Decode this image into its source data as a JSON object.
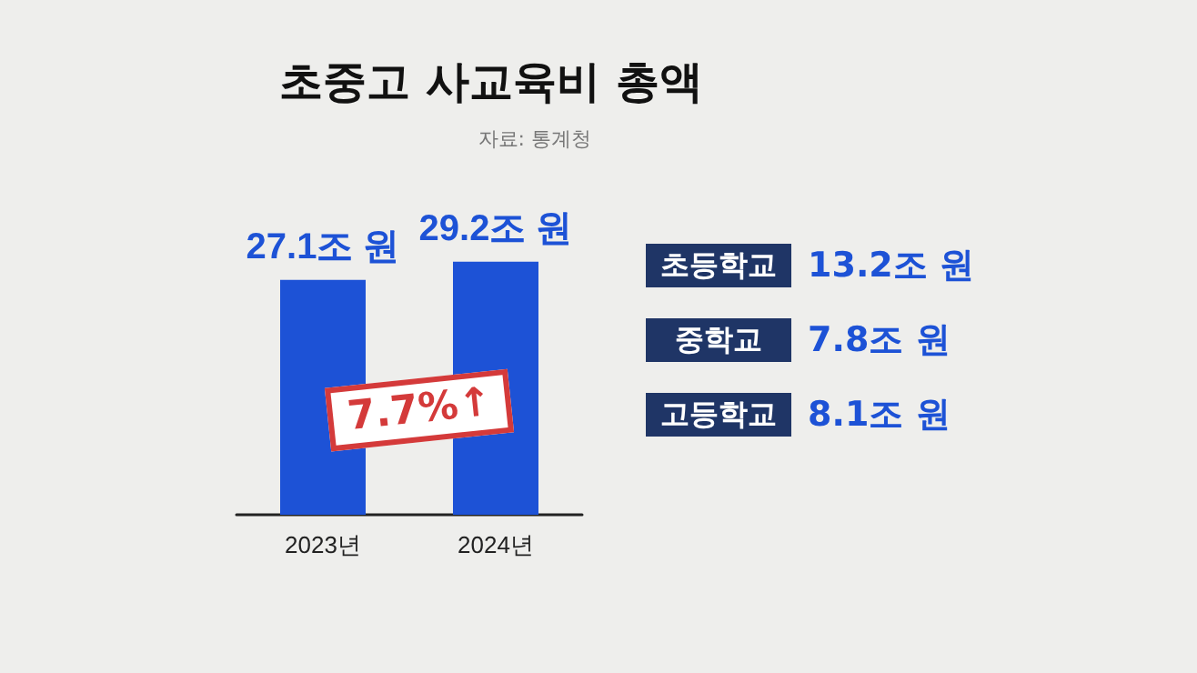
{
  "chart_data": [
    {
      "type": "bar",
      "title": "초중고 사교육비 총액",
      "subtitle": "자료: 통계청",
      "categories": [
        "2023년",
        "2024년"
      ],
      "values": [
        27.1,
        29.2
      ],
      "value_labels": [
        "27.1조 원",
        "29.2조 원"
      ],
      "color": "#1d52d6",
      "tick_labels": "x",
      "annotations": [
        "7.7%↑"
      ]
    },
    {
      "type": "other",
      "annotations": [
        "초등학교",
        "13.2조 원",
        "중학교",
        "7.8조 원",
        "고등학교",
        "8.1조 원"
      ]
    }
  ]
}
